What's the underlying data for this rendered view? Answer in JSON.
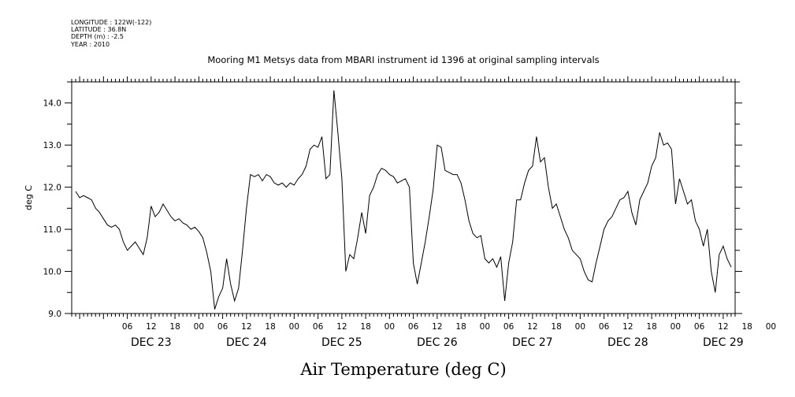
{
  "header": {
    "meta_lines": [
      "LONGITUDE : 122W(-122)",
      "LATITUDE : 36.8N",
      "DEPTH (m) : -2.5",
      "YEAR : 2010"
    ],
    "title": "Mooring M1 Metsys data from MBARI instrument id 1396 at original sampling intervals"
  },
  "caption": "Air Temperature (deg C)",
  "chart_data": {
    "type": "line",
    "title": "Mooring M1 Metsys data from MBARI instrument id 1396 at original sampling intervals",
    "xlabel": "",
    "ylabel": "deg C",
    "ylim": [
      9.0,
      14.5
    ],
    "yticks": [
      9.0,
      10.0,
      11.0,
      12.0,
      13.0,
      14.0
    ],
    "ytick_labels": [
      "9.0",
      "10.0",
      "11.0",
      "12.0",
      "13.0",
      "14.0"
    ],
    "xlim_hours": [
      -8,
      159
    ],
    "x_unit": "hours from DEC 23 00:00",
    "x_tick_labels": [
      {
        "h": 6,
        "t": "06"
      },
      {
        "h": 12,
        "t": "12"
      },
      {
        "h": 18,
        "t": "18"
      },
      {
        "h": 24,
        "t": "00"
      },
      {
        "h": 30,
        "t": "06"
      },
      {
        "h": 36,
        "t": "12"
      },
      {
        "h": 42,
        "t": "18"
      },
      {
        "h": 48,
        "t": "00"
      },
      {
        "h": 54,
        "t": "06"
      },
      {
        "h": 60,
        "t": "12"
      },
      {
        "h": 66,
        "t": "18"
      },
      {
        "h": 72,
        "t": "00"
      },
      {
        "h": 78,
        "t": "06"
      },
      {
        "h": 84,
        "t": "12"
      },
      {
        "h": 90,
        "t": "18"
      },
      {
        "h": 96,
        "t": "00"
      },
      {
        "h": 102,
        "t": "06"
      },
      {
        "h": 108,
        "t": "12"
      },
      {
        "h": 114,
        "t": "18"
      },
      {
        "h": 120,
        "t": "00"
      },
      {
        "h": 126,
        "t": "06"
      },
      {
        "h": 132,
        "t": "12"
      },
      {
        "h": 138,
        "t": "18"
      },
      {
        "h": 144,
        "t": "00"
      },
      {
        "h": 150,
        "t": "06"
      },
      {
        "h": 156,
        "t": "12"
      },
      {
        "h": 162,
        "t": "18"
      },
      {
        "h": 168,
        "t": "00"
      }
    ],
    "day_labels": [
      {
        "h": 12,
        "t": "DEC 23"
      },
      {
        "h": 36,
        "t": "DEC 24"
      },
      {
        "h": 60,
        "t": "DEC 25"
      },
      {
        "h": 84,
        "t": "DEC 26"
      },
      {
        "h": 108,
        "t": "DEC 27"
      },
      {
        "h": 132,
        "t": "DEC 28"
      },
      {
        "h": 156,
        "t": "DEC 29"
      }
    ],
    "series": [
      {
        "values_hourly_from": -7,
        "points": [
          [
            -7,
            11.9
          ],
          [
            -6,
            11.75
          ],
          [
            -5,
            11.8
          ],
          [
            -4,
            11.75
          ],
          [
            -3,
            11.7
          ],
          [
            -2,
            11.5
          ],
          [
            -1,
            11.4
          ],
          [
            0,
            11.25
          ],
          [
            1,
            11.1
          ],
          [
            2,
            11.05
          ],
          [
            3,
            11.1
          ],
          [
            4,
            11.0
          ],
          [
            5,
            10.7
          ],
          [
            6,
            10.5
          ],
          [
            7,
            10.6
          ],
          [
            8,
            10.7
          ],
          [
            9,
            10.55
          ],
          [
            10,
            10.4
          ],
          [
            11,
            10.8
          ],
          [
            12,
            11.55
          ],
          [
            13,
            11.3
          ],
          [
            14,
            11.4
          ],
          [
            15,
            11.6
          ],
          [
            16,
            11.45
          ],
          [
            17,
            11.3
          ],
          [
            18,
            11.2
          ],
          [
            19,
            11.25
          ],
          [
            20,
            11.15
          ],
          [
            21,
            11.1
          ],
          [
            22,
            11.0
          ],
          [
            23,
            11.05
          ],
          [
            24,
            10.95
          ],
          [
            25,
            10.8
          ],
          [
            26,
            10.45
          ],
          [
            27,
            10.0
          ],
          [
            28,
            9.1
          ],
          [
            29,
            9.4
          ],
          [
            30,
            9.6
          ],
          [
            31,
            10.3
          ],
          [
            32,
            9.7
          ],
          [
            33,
            9.3
          ],
          [
            34,
            9.6
          ],
          [
            35,
            10.5
          ],
          [
            36,
            11.5
          ],
          [
            37,
            12.3
          ],
          [
            38,
            12.25
          ],
          [
            39,
            12.3
          ],
          [
            40,
            12.15
          ],
          [
            41,
            12.3
          ],
          [
            42,
            12.25
          ],
          [
            43,
            12.1
          ],
          [
            44,
            12.05
          ],
          [
            45,
            12.1
          ],
          [
            46,
            12.0
          ],
          [
            47,
            12.1
          ],
          [
            48,
            12.05
          ],
          [
            49,
            12.2
          ],
          [
            50,
            12.3
          ],
          [
            51,
            12.5
          ],
          [
            52,
            12.9
          ],
          [
            53,
            13.0
          ],
          [
            54,
            12.95
          ],
          [
            55,
            13.2
          ],
          [
            56,
            12.2
          ],
          [
            57,
            12.3
          ],
          [
            58,
            14.3
          ],
          [
            59,
            13.3
          ],
          [
            60,
            12.2
          ],
          [
            61,
            10.0
          ],
          [
            62,
            10.4
          ],
          [
            63,
            10.3
          ],
          [
            64,
            10.8
          ],
          [
            65,
            11.4
          ],
          [
            66,
            10.9
          ],
          [
            67,
            11.8
          ],
          [
            68,
            12.0
          ],
          [
            69,
            12.3
          ],
          [
            70,
            12.45
          ],
          [
            71,
            12.4
          ],
          [
            72,
            12.3
          ],
          [
            73,
            12.25
          ],
          [
            74,
            12.1
          ],
          [
            75,
            12.15
          ],
          [
            76,
            12.2
          ],
          [
            77,
            12.0
          ],
          [
            78,
            10.2
          ],
          [
            79,
            9.7
          ],
          [
            80,
            10.2
          ],
          [
            81,
            10.7
          ],
          [
            82,
            11.3
          ],
          [
            83,
            11.95
          ],
          [
            84,
            13.0
          ],
          [
            85,
            12.95
          ],
          [
            86,
            12.4
          ],
          [
            87,
            12.35
          ],
          [
            88,
            12.3
          ],
          [
            89,
            12.3
          ],
          [
            90,
            12.1
          ],
          [
            91,
            11.7
          ],
          [
            92,
            11.2
          ],
          [
            93,
            10.9
          ],
          [
            94,
            10.8
          ],
          [
            95,
            10.85
          ],
          [
            96,
            10.3
          ],
          [
            97,
            10.2
          ],
          [
            98,
            10.3
          ],
          [
            99,
            10.1
          ],
          [
            100,
            10.35
          ],
          [
            101,
            9.3
          ],
          [
            102,
            10.2
          ],
          [
            103,
            10.7
          ],
          [
            104,
            11.7
          ],
          [
            105,
            11.7
          ],
          [
            106,
            12.1
          ],
          [
            107,
            12.4
          ],
          [
            108,
            12.5
          ],
          [
            109,
            13.2
          ],
          [
            110,
            12.6
          ],
          [
            111,
            12.7
          ],
          [
            112,
            12.0
          ],
          [
            113,
            11.5
          ],
          [
            114,
            11.6
          ],
          [
            115,
            11.3
          ],
          [
            116,
            11.0
          ],
          [
            117,
            10.8
          ],
          [
            118,
            10.5
          ],
          [
            119,
            10.4
          ],
          [
            120,
            10.3
          ],
          [
            121,
            10.0
          ],
          [
            122,
            9.8
          ],
          [
            123,
            9.75
          ],
          [
            124,
            10.2
          ],
          [
            125,
            10.6
          ],
          [
            126,
            11.0
          ],
          [
            127,
            11.2
          ],
          [
            128,
            11.3
          ],
          [
            129,
            11.5
          ],
          [
            130,
            11.7
          ],
          [
            131,
            11.75
          ],
          [
            132,
            11.9
          ],
          [
            133,
            11.4
          ],
          [
            134,
            11.1
          ],
          [
            135,
            11.7
          ],
          [
            136,
            11.9
          ],
          [
            137,
            12.1
          ],
          [
            138,
            12.5
          ],
          [
            139,
            12.7
          ],
          [
            140,
            13.3
          ],
          [
            141,
            13.0
          ],
          [
            142,
            13.05
          ],
          [
            143,
            12.9
          ],
          [
            144,
            11.6
          ],
          [
            145,
            12.2
          ],
          [
            146,
            11.9
          ],
          [
            147,
            11.6
          ],
          [
            148,
            11.7
          ],
          [
            149,
            11.2
          ],
          [
            150,
            11.0
          ],
          [
            151,
            10.6
          ],
          [
            152,
            11.0
          ],
          [
            153,
            10.0
          ],
          [
            154,
            9.5
          ],
          [
            155,
            10.4
          ],
          [
            156,
            10.6
          ],
          [
            157,
            10.3
          ],
          [
            158,
            10.1
          ]
        ]
      }
    ],
    "grid": false,
    "legend": "none"
  }
}
